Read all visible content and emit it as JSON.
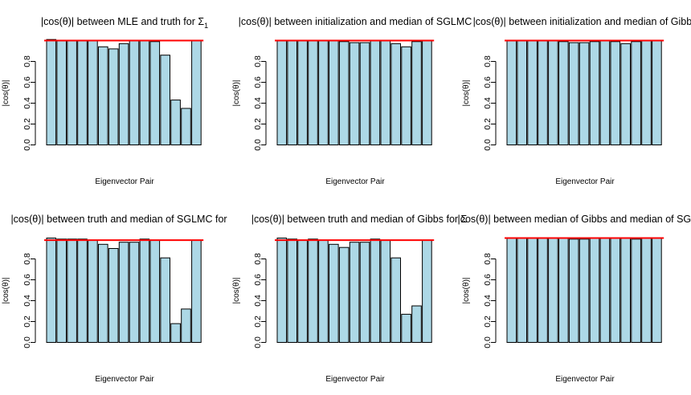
{
  "colors": {
    "bar_fill": "#add8e6",
    "bar_stroke": "#000000",
    "reference_line": "#ff0000"
  },
  "chart_data": [
    {
      "type": "bar",
      "title": "|cos(θ)| between MLE and truth for Σ",
      "title_subscript": "1",
      "xlabel": "Eigenvector Pair",
      "ylabel": "|cos(θ)|",
      "ylim": [
        0,
        1
      ],
      "yticks": [
        "0.0",
        "0.2",
        "0.4",
        "0.6",
        "0.8"
      ],
      "reference_line": 1.0,
      "values": [
        1.01,
        1.0,
        1.0,
        1.0,
        1.0,
        0.94,
        0.92,
        0.97,
        1.0,
        1.0,
        0.99,
        0.86,
        0.43,
        0.35,
        1.0
      ]
    },
    {
      "type": "bar",
      "title": "|cos(θ)| between initialization and median of SGLMC",
      "xlabel": "Eigenvector Pair",
      "ylabel": "|cos(θ)|",
      "ylim": [
        0,
        1
      ],
      "yticks": [
        "0.0",
        "0.2",
        "0.4",
        "0.6",
        "0.8"
      ],
      "reference_line": 1.0,
      "values": [
        1.0,
        1.0,
        1.0,
        1.0,
        1.0,
        1.0,
        0.99,
        0.98,
        0.98,
        1.0,
        1.0,
        0.97,
        0.94,
        0.99,
        1.0
      ]
    },
    {
      "type": "bar",
      "title": "|cos(θ)| between initialization and median of Gibbs",
      "xlabel": "Eigenvector Pair",
      "ylabel": "|cos(θ)|",
      "ylim": [
        0,
        1
      ],
      "yticks": [
        "0.0",
        "0.2",
        "0.4",
        "0.6",
        "0.8"
      ],
      "reference_line": 1.0,
      "values": [
        1.0,
        1.0,
        1.0,
        1.0,
        1.0,
        0.99,
        0.98,
        0.98,
        0.99,
        1.0,
        0.99,
        0.97,
        0.99,
        1.0,
        1.0
      ]
    },
    {
      "type": "bar",
      "title": "|cos(θ)| between truth and median of SGLMC for",
      "xlabel": "Eigenvector Pair",
      "ylabel": "|cos(θ)|",
      "ylim": [
        0,
        1
      ],
      "yticks": [
        "0.0",
        "0.2",
        "0.4",
        "0.6",
        "0.8"
      ],
      "reference_line": 0.98,
      "values": [
        1.0,
        0.99,
        0.99,
        0.99,
        0.98,
        0.94,
        0.9,
        0.96,
        0.96,
        0.99,
        0.98,
        0.81,
        0.18,
        0.32,
        0.98
      ]
    },
    {
      "type": "bar",
      "title": "|cos(θ)| between truth and median of Gibbs for Σ",
      "xlabel": "Eigenvector Pair",
      "ylabel": "|cos(θ)|",
      "ylim": [
        0,
        1
      ],
      "yticks": [
        "0.0",
        "0.2",
        "0.4",
        "0.6",
        "0.8"
      ],
      "reference_line": 0.98,
      "values": [
        1.0,
        0.99,
        0.98,
        0.99,
        0.98,
        0.94,
        0.91,
        0.96,
        0.96,
        0.99,
        0.98,
        0.81,
        0.27,
        0.35,
        0.98
      ]
    },
    {
      "type": "bar",
      "title": "|cos(θ)| between median of Gibbs and median of SGLMC",
      "xlabel": "Eigenvector Pair",
      "ylabel": "|cos(θ)|",
      "ylim": [
        0,
        1
      ],
      "yticks": [
        "0.0",
        "0.2",
        "0.4",
        "0.6",
        "0.8"
      ],
      "reference_line": 1.0,
      "values": [
        1.0,
        1.0,
        1.0,
        1.0,
        1.0,
        1.0,
        0.99,
        0.99,
        1.0,
        1.0,
        1.0,
        1.0,
        0.99,
        1.0,
        1.0
      ]
    }
  ]
}
